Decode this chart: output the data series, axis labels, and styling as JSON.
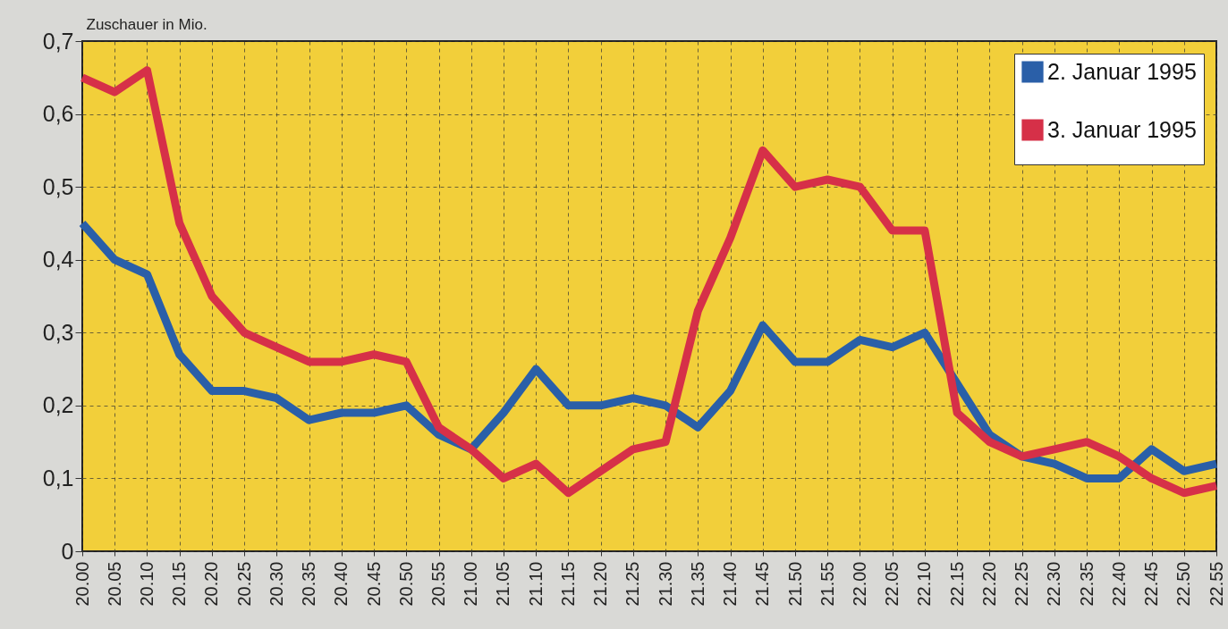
{
  "chart_data": {
    "type": "line",
    "ylabel": "Zuschauer in Mio.",
    "categories": [
      "20.00",
      "20.05",
      "20.10",
      "20.15",
      "20.20",
      "20.25",
      "20.30",
      "20.35",
      "20.40",
      "20.45",
      "20.50",
      "20.55",
      "21.00",
      "21.05",
      "21.10",
      "21.15",
      "21.20",
      "21.25",
      "21.30",
      "21.35",
      "21.40",
      "21.45",
      "21.50",
      "21.55",
      "22.00",
      "22.05",
      "22.10",
      "22.15",
      "22.20",
      "22.25",
      "22.30",
      "22.35",
      "22.40",
      "22.45",
      "22.50",
      "22.55"
    ],
    "series": [
      {
        "name": "2. Januar 1995",
        "color": "#2a5fa8",
        "values": [
          0.45,
          0.4,
          0.38,
          0.27,
          0.22,
          0.22,
          0.21,
          0.18,
          0.19,
          0.19,
          0.2,
          0.16,
          0.14,
          0.19,
          0.25,
          0.2,
          0.2,
          0.21,
          0.2,
          0.17,
          0.22,
          0.31,
          0.26,
          0.26,
          0.29,
          0.28,
          0.3,
          0.23,
          0.16,
          0.13,
          0.12,
          0.1,
          0.1,
          0.14,
          0.11,
          0.12
        ]
      },
      {
        "name": "3. Januar 1995",
        "color": "#d63048",
        "values": [
          0.65,
          0.63,
          0.66,
          0.45,
          0.35,
          0.3,
          0.28,
          0.26,
          0.26,
          0.27,
          0.26,
          0.17,
          0.14,
          0.1,
          0.12,
          0.08,
          0.11,
          0.14,
          0.15,
          0.33,
          0.43,
          0.55,
          0.5,
          0.51,
          0.5,
          0.44,
          0.44,
          0.19,
          0.15,
          0.13,
          0.14,
          0.15,
          0.13,
          0.1,
          0.08,
          0.09
        ]
      }
    ],
    "ylim": [
      0,
      0.7
    ],
    "yticks": [
      0,
      {
        "value": 0.1,
        "label": "0,1"
      },
      {
        "value": 0.2,
        "label": "0,2"
      },
      {
        "value": 0.3,
        "label": "0,3"
      },
      {
        "value": 0.4,
        "label": "0,4"
      },
      {
        "value": 0.5,
        "label": "0,5"
      },
      {
        "value": 0.6,
        "label": "0,6"
      },
      {
        "value": 0.7,
        "label": "0,7"
      }
    ],
    "grid": true,
    "legend": "top right",
    "marker": "none",
    "line_style": "solid"
  }
}
